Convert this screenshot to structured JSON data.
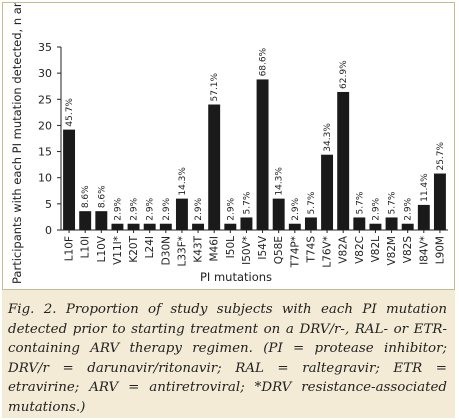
{
  "chart_data": {
    "type": "bar",
    "ylabel": "Participants with each PI mutation detected, n and %",
    "xlabel": "PI mutations",
    "ylim": [
      0,
      35
    ],
    "yticks": [
      0,
      5,
      10,
      15,
      20,
      25,
      30,
      35
    ],
    "grid": false,
    "bar_color": "#1a1a1a",
    "categories": [
      "L10F",
      "L10I",
      "L10V",
      "V11I*",
      "K20T",
      "L24I",
      "D30N",
      "L33F*",
      "K43T",
      "M46I",
      "I50L",
      "I50V*",
      "I54V",
      "Q58E",
      "T74P*",
      "T74S",
      "L76V*",
      "V82A",
      "V82C",
      "V82L",
      "V82M",
      "V82S",
      "I84V*",
      "L90M"
    ],
    "values": [
      19.2,
      3.6,
      3.6,
      1.2,
      1.2,
      1.2,
      1.2,
      6,
      1.2,
      24,
      1.2,
      2.4,
      28.8,
      6,
      1.2,
      2.4,
      14.4,
      26.4,
      2.4,
      1.2,
      2.4,
      1.2,
      4.8,
      10.8
    ],
    "data_labels": [
      "45.7%",
      "8.6%",
      "8.6%",
      "2.9%",
      "2.9%",
      "2.9%",
      "2.9%",
      "14.3%",
      "2.9%",
      "57.1%",
      "2.9%",
      "5.7%",
      "68.6%",
      "14.3%",
      "2.9%",
      "5.7%",
      "34.3%",
      "62.9%",
      "5.7%",
      "2.9%",
      "5.7%",
      "2.9%",
      "11.4%",
      "25.7%"
    ]
  },
  "caption": {
    "fig_label": "Fig. 2.",
    "text": "Proportion of study subjects with each PI mutation detected prior to starting treatment on a DRV/r-, RAL- or ETR-containing ARV therapy regimen. (PI = protease inhibitor; DRV/r = darunavir/ritonavir; RAL = raltegravir; ETR = etravirine; ARV = antiretroviral; *DRV resistance-associated mutations.)"
  },
  "colors": {
    "frame_border": "#c8b98e",
    "caption_background": "#f3ebd5"
  }
}
